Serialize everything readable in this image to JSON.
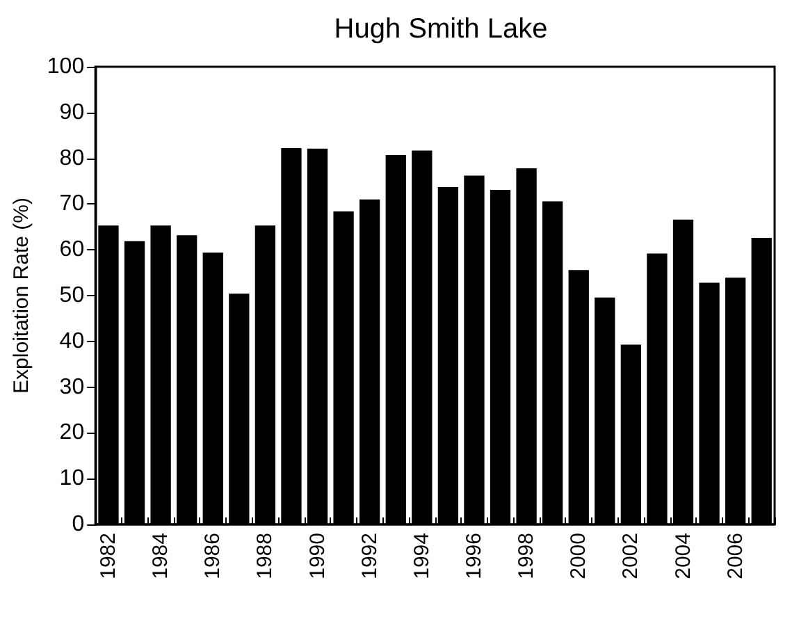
{
  "chart_data": {
    "type": "bar",
    "title": "Hugh Smith Lake",
    "ylabel": "Exploitation Rate (%)",
    "categories": [
      "1982",
      null,
      "1984",
      null,
      "1986",
      null,
      "1988",
      null,
      "1990",
      null,
      "1992",
      null,
      "1994",
      null,
      "1996",
      null,
      "1998",
      null,
      "2000",
      null,
      "2002",
      null,
      "2004",
      null,
      "2006",
      null
    ],
    "values": [
      65.3,
      61.9,
      65.3,
      63.2,
      59.4,
      50.4,
      65.3,
      82.2,
      82.1,
      68.4,
      71.0,
      80.7,
      81.7,
      73.7,
      76.2,
      73.1,
      77.8,
      70.6,
      55.6,
      49.6,
      39.3,
      59.2,
      66.6,
      52.8,
      53.9,
      62.6
    ],
    "color": "#000000",
    "ylim": [
      0,
      100
    ],
    "yticks": [
      0,
      10,
      20,
      30,
      40,
      50,
      60,
      70,
      80,
      90,
      100
    ],
    "grid": false
  }
}
